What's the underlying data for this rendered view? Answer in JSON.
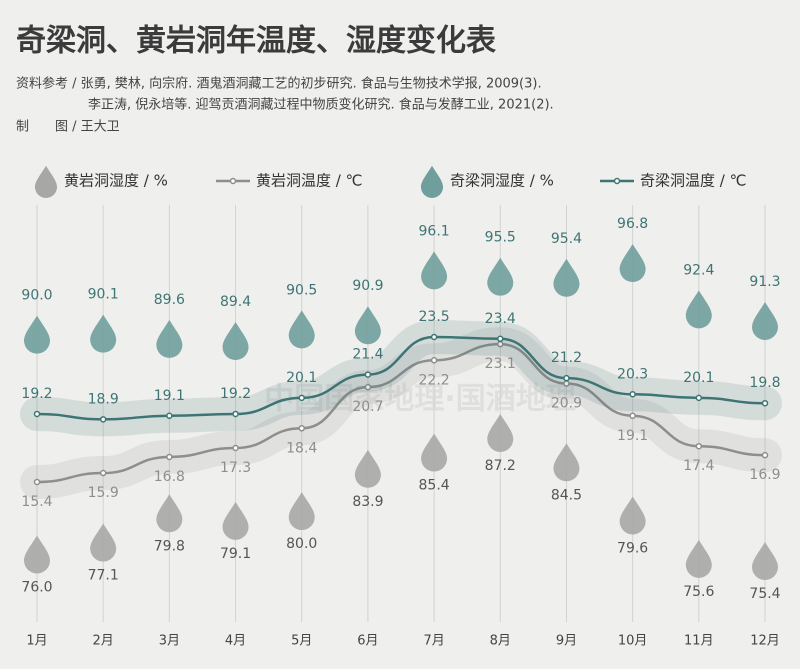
{
  "chart_data": {
    "type": "line",
    "title": "奇梁洞、黄岩洞年温度、湿度变化表",
    "sources": [
      "资料参考 / 张勇, 樊林, 向宗府. 酒鬼酒洞藏工艺的初步研究. 食品与生物技术学报, 2009(3).",
      "李正涛, 倪永培等. 迎驾贡酒洞藏过程中物质变化研究. 食品与发酵工业, 2021(2)."
    ],
    "credit": "制　　图 / 王大卫",
    "watermark": "中国国家地理·国酒地理",
    "categories": [
      "1月",
      "2月",
      "3月",
      "4月",
      "5月",
      "6月",
      "7月",
      "8月",
      "9月",
      "10月",
      "11月",
      "12月"
    ],
    "series": [
      {
        "name": "黄岩洞湿度 / %",
        "kind": "drop",
        "color": "#a7a7a5",
        "values": [
          76.0,
          77.1,
          79.8,
          79.1,
          80.0,
          83.9,
          85.4,
          87.2,
          84.5,
          79.6,
          75.6,
          75.4
        ],
        "value_labels": [
          "76.0",
          "77.1",
          "79.8",
          "79.1",
          "80.0",
          "83.9",
          "85.4",
          "87.2",
          "84.5",
          "79.6",
          "75.6",
          "75.4"
        ]
      },
      {
        "name": "黄岩洞温度 / ℃",
        "kind": "line",
        "color": "#8e8e8c",
        "values": [
          15.4,
          15.9,
          16.8,
          17.3,
          18.4,
          20.7,
          22.2,
          23.1,
          20.9,
          19.1,
          17.4,
          16.9
        ]
      },
      {
        "name": "奇梁洞湿度 / %",
        "kind": "drop",
        "color": "#6f9e9c",
        "values": [
          90.0,
          90.1,
          89.6,
          89.4,
          90.5,
          90.9,
          96.1,
          95.5,
          95.4,
          96.8,
          92.4,
          91.3
        ],
        "value_labels": [
          "90.0",
          "90.1",
          "89.6",
          "89.4",
          "90.5",
          "90.9",
          "96.1",
          "95.5",
          "95.4",
          "96.8",
          "92.4",
          "91.3"
        ]
      },
      {
        "name": "奇梁洞温度 / ℃",
        "kind": "line",
        "color": "#3e7574",
        "values": [
          19.2,
          18.9,
          19.1,
          19.2,
          20.1,
          21.4,
          23.5,
          23.4,
          21.2,
          20.3,
          20.1,
          19.8
        ]
      }
    ]
  }
}
